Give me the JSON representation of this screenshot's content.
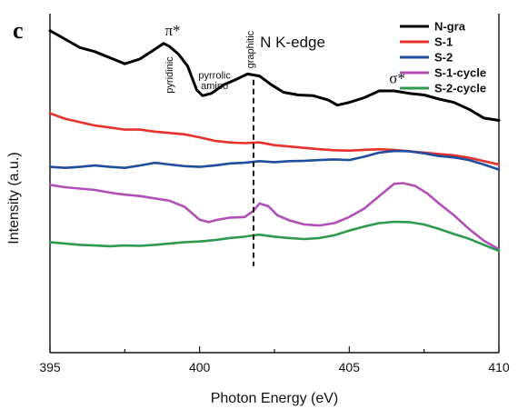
{
  "panel_label": "c",
  "chart_data": {
    "type": "line",
    "title": "N K-edge",
    "xlabel": "Photon Energy (eV)",
    "ylabel": "Intensity (a.u.)",
    "xlim": [
      395,
      410
    ],
    "x_ticks": [
      395,
      400,
      405,
      410
    ],
    "y_ticks": "none",
    "grid": false,
    "legend_position": "top-right",
    "series": [
      {
        "name": "N-gra",
        "color": "#000000",
        "points": [
          [
            395,
            0.95
          ],
          [
            395.5,
            0.925
          ],
          [
            396,
            0.9
          ],
          [
            396.5,
            0.888
          ],
          [
            397,
            0.87
          ],
          [
            397.5,
            0.852
          ],
          [
            398,
            0.866
          ],
          [
            398.5,
            0.895
          ],
          [
            398.8,
            0.912
          ],
          [
            399,
            0.903
          ],
          [
            399.3,
            0.88
          ],
          [
            399.6,
            0.845
          ],
          [
            399.9,
            0.775
          ],
          [
            400.1,
            0.758
          ],
          [
            400.4,
            0.765
          ],
          [
            400.8,
            0.79
          ],
          [
            401.2,
            0.805
          ],
          [
            401.6,
            0.822
          ],
          [
            402,
            0.816
          ],
          [
            402.4,
            0.79
          ],
          [
            402.8,
            0.768
          ],
          [
            403.3,
            0.76
          ],
          [
            403.8,
            0.758
          ],
          [
            404.3,
            0.745
          ],
          [
            404.6,
            0.73
          ],
          [
            405,
            0.738
          ],
          [
            405.5,
            0.752
          ],
          [
            406,
            0.772
          ],
          [
            406.5,
            0.772
          ],
          [
            407,
            0.765
          ],
          [
            407.5,
            0.76
          ],
          [
            408,
            0.748
          ],
          [
            408.5,
            0.738
          ],
          [
            409,
            0.718
          ],
          [
            409.5,
            0.692
          ],
          [
            410,
            0.685
          ]
        ]
      },
      {
        "name": "S-1",
        "color": "#e8312a",
        "points": [
          [
            395,
            0.706
          ],
          [
            395.5,
            0.69
          ],
          [
            396,
            0.68
          ],
          [
            396.5,
            0.67
          ],
          [
            397,
            0.664
          ],
          [
            397.5,
            0.658
          ],
          [
            398,
            0.658
          ],
          [
            398.5,
            0.652
          ],
          [
            399,
            0.648
          ],
          [
            399.5,
            0.644
          ],
          [
            400,
            0.635
          ],
          [
            400.5,
            0.625
          ],
          [
            401,
            0.62
          ],
          [
            401.5,
            0.618
          ],
          [
            402,
            0.62
          ],
          [
            402.5,
            0.612
          ],
          [
            403,
            0.608
          ],
          [
            403.5,
            0.604
          ],
          [
            404,
            0.6
          ],
          [
            404.5,
            0.597
          ],
          [
            405,
            0.596
          ],
          [
            405.5,
            0.598
          ],
          [
            406,
            0.6
          ],
          [
            406.5,
            0.598
          ],
          [
            407,
            0.594
          ],
          [
            407.5,
            0.59
          ],
          [
            408,
            0.586
          ],
          [
            408.5,
            0.582
          ],
          [
            409,
            0.575
          ],
          [
            409.5,
            0.565
          ],
          [
            410,
            0.555
          ]
        ]
      },
      {
        "name": "S-2",
        "color": "#1f4e9c",
        "points": [
          [
            395,
            0.548
          ],
          [
            395.5,
            0.545
          ],
          [
            396,
            0.548
          ],
          [
            396.5,
            0.552
          ],
          [
            397,
            0.548
          ],
          [
            397.5,
            0.545
          ],
          [
            398,
            0.552
          ],
          [
            398.5,
            0.56
          ],
          [
            399,
            0.555
          ],
          [
            399.5,
            0.55
          ],
          [
            400,
            0.548
          ],
          [
            400.5,
            0.552
          ],
          [
            401,
            0.558
          ],
          [
            401.5,
            0.56
          ],
          [
            402,
            0.565
          ],
          [
            402.5,
            0.562
          ],
          [
            403,
            0.565
          ],
          [
            403.5,
            0.566
          ],
          [
            404,
            0.568
          ],
          [
            404.5,
            0.57
          ],
          [
            405,
            0.568
          ],
          [
            405.5,
            0.578
          ],
          [
            406,
            0.59
          ],
          [
            406.5,
            0.595
          ],
          [
            407,
            0.594
          ],
          [
            407.5,
            0.588
          ],
          [
            408,
            0.58
          ],
          [
            408.5,
            0.576
          ],
          [
            409,
            0.568
          ],
          [
            409.5,
            0.555
          ],
          [
            410,
            0.54
          ]
        ]
      },
      {
        "name": "S-1-cycle",
        "color": "#b04fb5",
        "points": [
          [
            395,
            0.495
          ],
          [
            395.5,
            0.488
          ],
          [
            396,
            0.484
          ],
          [
            396.5,
            0.48
          ],
          [
            397,
            0.472
          ],
          [
            397.5,
            0.466
          ],
          [
            398,
            0.462
          ],
          [
            398.5,
            0.455
          ],
          [
            399,
            0.448
          ],
          [
            399.5,
            0.43
          ],
          [
            400,
            0.392
          ],
          [
            400.3,
            0.385
          ],
          [
            400.6,
            0.392
          ],
          [
            401,
            0.398
          ],
          [
            401.5,
            0.4
          ],
          [
            401.8,
            0.418
          ],
          [
            402,
            0.44
          ],
          [
            402.3,
            0.432
          ],
          [
            402.6,
            0.405
          ],
          [
            403,
            0.39
          ],
          [
            403.5,
            0.378
          ],
          [
            404,
            0.375
          ],
          [
            404.5,
            0.382
          ],
          [
            405,
            0.4
          ],
          [
            405.5,
            0.425
          ],
          [
            406,
            0.462
          ],
          [
            406.5,
            0.498
          ],
          [
            406.8,
            0.5
          ],
          [
            407.2,
            0.492
          ],
          [
            407.6,
            0.47
          ],
          [
            408,
            0.44
          ],
          [
            408.5,
            0.405
          ],
          [
            409,
            0.365
          ],
          [
            409.5,
            0.33
          ],
          [
            410,
            0.305
          ]
        ]
      },
      {
        "name": "S-2-cycle",
        "color": "#2e9a4e",
        "points": [
          [
            395,
            0.326
          ],
          [
            395.5,
            0.322
          ],
          [
            396,
            0.318
          ],
          [
            396.5,
            0.316
          ],
          [
            397,
            0.314
          ],
          [
            397.5,
            0.316
          ],
          [
            398,
            0.315
          ],
          [
            398.5,
            0.318
          ],
          [
            399,
            0.322
          ],
          [
            399.5,
            0.326
          ],
          [
            400,
            0.328
          ],
          [
            400.5,
            0.332
          ],
          [
            401,
            0.338
          ],
          [
            401.5,
            0.342
          ],
          [
            401.8,
            0.346
          ],
          [
            402,
            0.348
          ],
          [
            402.5,
            0.342
          ],
          [
            403,
            0.338
          ],
          [
            403.5,
            0.335
          ],
          [
            404,
            0.338
          ],
          [
            404.5,
            0.346
          ],
          [
            405,
            0.36
          ],
          [
            405.5,
            0.372
          ],
          [
            406,
            0.382
          ],
          [
            406.5,
            0.386
          ],
          [
            407,
            0.385
          ],
          [
            407.5,
            0.378
          ],
          [
            408,
            0.365
          ],
          [
            408.5,
            0.35
          ],
          [
            409,
            0.336
          ],
          [
            409.5,
            0.318
          ],
          [
            410,
            0.3
          ]
        ]
      }
    ],
    "annotations": [
      {
        "text": "π*",
        "x": 399.1,
        "y": 0.935,
        "style": "big"
      },
      {
        "text": "pyridinic",
        "x": 399.1,
        "y": 0.765,
        "style": "rot"
      },
      {
        "text": "pyrrolic",
        "x": 400.5,
        "y": 0.808,
        "style": "small"
      },
      {
        "text": "amino",
        "x": 400.5,
        "y": 0.778,
        "style": "small"
      },
      {
        "text": "graphitic",
        "x": 401.8,
        "y": 0.838,
        "style": "rot"
      },
      {
        "text": "σ*",
        "x": 406.6,
        "y": 0.795,
        "style": "big"
      }
    ],
    "reference_line": {
      "x": 401.8,
      "y_from": 0.805,
      "y_to": 0.255,
      "style": "dashed"
    }
  }
}
